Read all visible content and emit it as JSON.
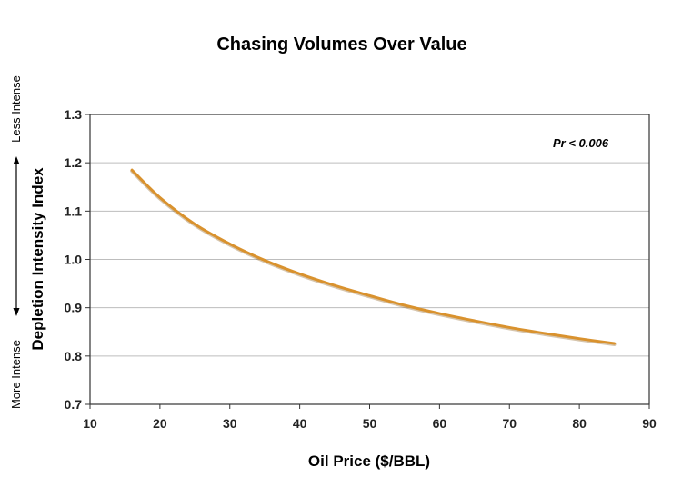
{
  "chart_data": {
    "type": "line",
    "title": "Chasing Volumes Over Value",
    "xlabel": "Oil Price ($/BBL)",
    "ylabel": "Depletion Intensity Index",
    "xlim": [
      10,
      90
    ],
    "ylim": [
      0.7,
      1.3
    ],
    "xticks": [
      "10",
      "20",
      "30",
      "40",
      "50",
      "60",
      "70",
      "80",
      "90"
    ],
    "yticks": [
      "0.7",
      "0.8",
      "0.9",
      "1.0",
      "1.1",
      "1.2",
      "1.3"
    ],
    "grid": "horizontal",
    "axis_annotations": {
      "top": "Less Intense",
      "bottom": "More Intense"
    },
    "annotation": "Pr < 0.006",
    "colors": {
      "line": "#d9922e",
      "grid": "#bdbdbd"
    },
    "series": [
      {
        "x": [
          16,
          20,
          25,
          30,
          35,
          40,
          45,
          50,
          55,
          60,
          65,
          70,
          75,
          80,
          85
        ],
        "values": [
          1.185,
          1.128,
          1.073,
          1.032,
          0.998,
          0.97,
          0.946,
          0.925,
          0.905,
          0.888,
          0.873,
          0.859,
          0.847,
          0.836,
          0.826
        ]
      }
    ]
  }
}
